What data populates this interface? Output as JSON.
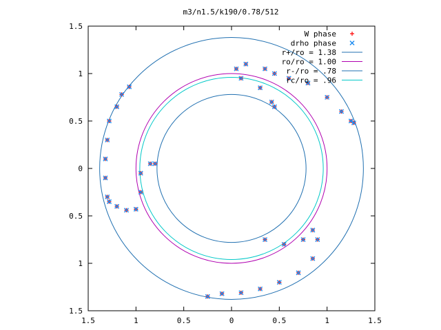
{
  "chart_data": {
    "type": "scatter",
    "title": "m3/n1.5/k190/0.78/512",
    "xlabel": "",
    "ylabel": "",
    "xlim": [
      -1.5,
      1.5
    ],
    "ylim": [
      -1.5,
      1.5
    ],
    "x_ticks": [
      -1.5,
      -1,
      -0.5,
      0,
      0.5,
      1,
      1.5
    ],
    "y_ticks": [
      -1.5,
      -1,
      -0.5,
      0,
      0.5,
      1,
      1.5
    ],
    "x_tick_labels": [
      "1.5",
      "1",
      "0.5",
      "0",
      "0.5",
      "1",
      "1.5"
    ],
    "y_tick_labels": [
      "1.5",
      "1",
      "0.5",
      "0",
      "0.5",
      "1",
      "1.5"
    ],
    "grid": false,
    "legend_position": "top-right",
    "series": [
      {
        "name": "W phase",
        "marker": "plus",
        "color": "#ff0000",
        "points": [
          [
            -1.3,
            -0.3
          ],
          [
            -1.32,
            -0.1
          ],
          [
            -1.32,
            0.1
          ],
          [
            -1.3,
            0.3
          ],
          [
            -1.28,
            0.5
          ],
          [
            -1.2,
            0.65
          ],
          [
            -1.15,
            0.78
          ],
          [
            -1.07,
            0.86
          ],
          [
            -1.28,
            -0.35
          ],
          [
            -1.2,
            -0.4
          ],
          [
            -1.1,
            -0.44
          ],
          [
            -1.0,
            -0.43
          ],
          [
            -0.95,
            -0.25
          ],
          [
            -0.95,
            -0.05
          ],
          [
            -0.85,
            0.05
          ],
          [
            -0.8,
            0.05
          ],
          [
            0.45,
            1.0
          ],
          [
            0.6,
            0.95
          ],
          [
            0.8,
            0.9
          ],
          [
            1.0,
            0.75
          ],
          [
            1.15,
            0.6
          ],
          [
            1.25,
            0.5
          ],
          [
            1.28,
            0.48
          ],
          [
            0.35,
            1.05
          ],
          [
            0.15,
            1.1
          ],
          [
            0.05,
            1.05
          ],
          [
            0.1,
            0.95
          ],
          [
            0.3,
            0.85
          ],
          [
            0.42,
            0.7
          ],
          [
            0.45,
            0.65
          ],
          [
            0.35,
            -0.75
          ],
          [
            0.55,
            -0.8
          ],
          [
            0.75,
            -0.75
          ],
          [
            0.85,
            -0.65
          ],
          [
            0.9,
            -0.75
          ],
          [
            0.85,
            -0.95
          ],
          [
            0.7,
            -1.1
          ],
          [
            0.5,
            -1.2
          ],
          [
            0.3,
            -1.27
          ],
          [
            0.1,
            -1.31
          ],
          [
            -0.1,
            -1.32
          ],
          [
            -0.25,
            -1.35
          ]
        ]
      },
      {
        "name": "drho phase",
        "marker": "cross",
        "color": "#1e8cf0",
        "points": [
          [
            -1.3,
            -0.3
          ],
          [
            -1.32,
            -0.1
          ],
          [
            -1.32,
            0.1
          ],
          [
            -1.3,
            0.3
          ],
          [
            -1.28,
            0.5
          ],
          [
            -1.2,
            0.65
          ],
          [
            -1.15,
            0.78
          ],
          [
            -1.07,
            0.86
          ],
          [
            -1.28,
            -0.35
          ],
          [
            -1.2,
            -0.4
          ],
          [
            -1.1,
            -0.44
          ],
          [
            -1.0,
            -0.43
          ],
          [
            -0.95,
            -0.25
          ],
          [
            -0.95,
            -0.05
          ],
          [
            -0.85,
            0.05
          ],
          [
            -0.8,
            0.05
          ],
          [
            0.45,
            1.0
          ],
          [
            0.6,
            0.95
          ],
          [
            0.8,
            0.9
          ],
          [
            1.0,
            0.75
          ],
          [
            1.15,
            0.6
          ],
          [
            1.25,
            0.5
          ],
          [
            1.28,
            0.48
          ],
          [
            0.35,
            1.05
          ],
          [
            0.15,
            1.1
          ],
          [
            0.05,
            1.05
          ],
          [
            0.1,
            0.95
          ],
          [
            0.3,
            0.85
          ],
          [
            0.42,
            0.7
          ],
          [
            0.45,
            0.65
          ],
          [
            0.35,
            -0.75
          ],
          [
            0.55,
            -0.8
          ],
          [
            0.75,
            -0.75
          ],
          [
            0.85,
            -0.65
          ],
          [
            0.9,
            -0.75
          ],
          [
            0.85,
            -0.95
          ],
          [
            0.7,
            -1.1
          ],
          [
            0.5,
            -1.2
          ],
          [
            0.3,
            -1.27
          ],
          [
            0.1,
            -1.31
          ],
          [
            -0.1,
            -1.32
          ],
          [
            -0.25,
            -1.35
          ]
        ]
      }
    ],
    "circles": [
      {
        "name": "r+/ro = 1.38",
        "radius": 1.38,
        "color": "#1f6fb0"
      },
      {
        "name": "ro/ro = 1.00",
        "radius": 1.0,
        "color": "#b000b0"
      },
      {
        "name": "r-/ro = .78",
        "radius": 0.78,
        "color": "#1f6fb0"
      },
      {
        "name": "rc/ro = .96",
        "radius": 0.96,
        "color": "#00c8c8"
      }
    ]
  }
}
